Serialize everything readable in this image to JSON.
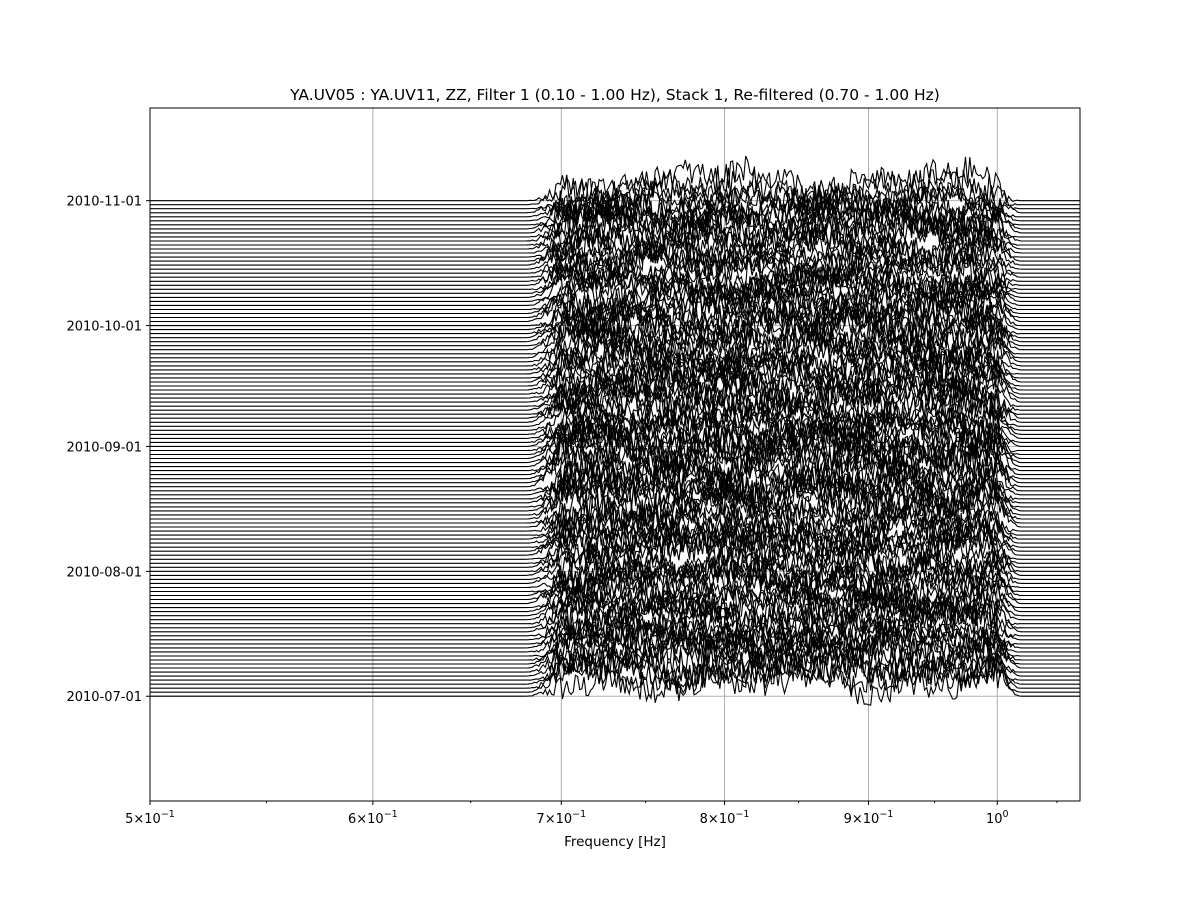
{
  "chart_data": {
    "type": "line",
    "title": "YA.UV05 : YA.UV11, ZZ, Filter 1 (0.10 - 1.00 Hz), Stack 1, Re-filtered (0.70 - 1.00 Hz)",
    "xlabel": "Frequency [Hz]",
    "ylabel": "",
    "x_scale": "log",
    "xlim": [
      0.5,
      1.07
    ],
    "ylim": [
      "2010-06-05",
      "2010-11-24"
    ],
    "x_ticks": [
      {
        "value": 0.5,
        "base": "5×10",
        "exp": "−1"
      },
      {
        "value": 0.6,
        "base": "6×10",
        "exp": "−1"
      },
      {
        "value": 0.7,
        "base": "7×10",
        "exp": "−1"
      },
      {
        "value": 0.8,
        "base": "8×10",
        "exp": "−1"
      },
      {
        "value": 0.9,
        "base": "9×10",
        "exp": "−1"
      },
      {
        "value": 1.0,
        "base": "10",
        "exp": "0"
      }
    ],
    "y_ticks": [
      "2010-07-01",
      "2010-08-01",
      "2010-09-01",
      "2010-10-01",
      "2010-11-01"
    ],
    "grid": true,
    "trace_series": {
      "first_date": "2010-07-01",
      "last_date": "2010-11-01",
      "count": 124,
      "spacing_days": 1,
      "flat_outside_hz": [
        0.68,
        1.02
      ],
      "active_band_hz": [
        0.7,
        1.0
      ],
      "typical_amplitude_days": 6
    },
    "line_color": "#000000",
    "grid_color": "#b0b0b0"
  }
}
